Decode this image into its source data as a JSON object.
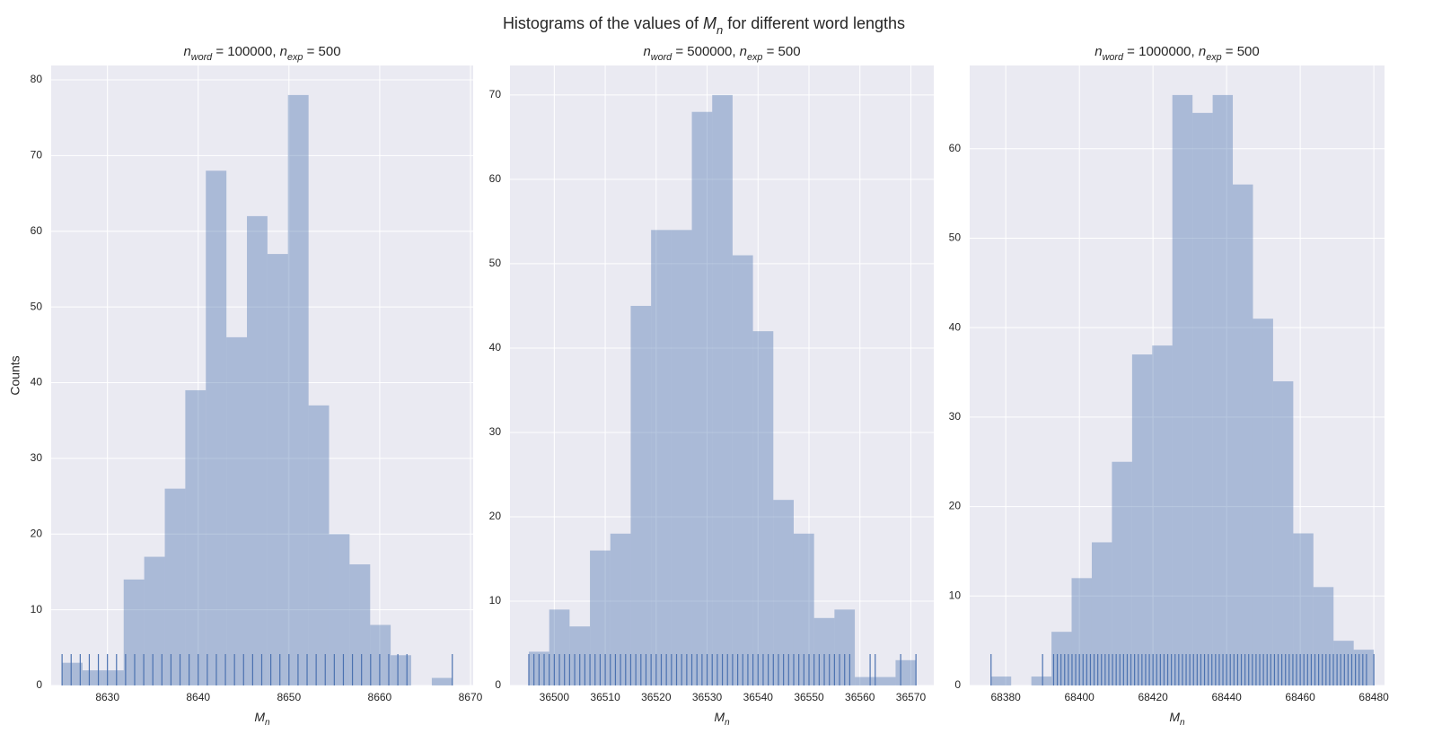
{
  "suptitle": [
    {
      "text": "Histograms of the values of "
    },
    {
      "text": "M",
      "sub": "n"
    },
    {
      "text": " for different word lengths"
    }
  ],
  "chart_data": [
    {
      "type": "histogram",
      "title": [
        {
          "text": "n",
          "sub": "word"
        },
        {
          "text": " = 100000, "
        },
        {
          "text": "n",
          "sub": "exp"
        },
        {
          "text": " = 500"
        }
      ],
      "xlabel": [
        {
          "text": "M",
          "sub": "n"
        }
      ],
      "ylabel": "Counts",
      "bins": [
        8625,
        8627.26,
        8629.53,
        8631.79,
        8634.05,
        8636.32,
        8638.58,
        8640.84,
        8643.11,
        8645.37,
        8647.63,
        8649.89,
        8652.16,
        8654.42,
        8656.68,
        8658.95,
        8661.21,
        8663.47,
        8665.74,
        8668
      ],
      "counts": [
        3,
        2,
        2,
        14,
        17,
        26,
        39,
        68,
        46,
        62,
        57,
        78,
        37,
        20,
        16,
        8,
        4,
        0,
        1
      ],
      "rug": [
        8625,
        8626,
        8627,
        8628,
        8629,
        8630,
        8631,
        8632,
        8633,
        8634,
        8635,
        8636,
        8637,
        8638,
        8639,
        8640,
        8641,
        8642,
        8643,
        8644,
        8645,
        8646,
        8647,
        8648,
        8649,
        8650,
        8651,
        8652,
        8653,
        8654,
        8655,
        8656,
        8657,
        8658,
        8659,
        8660,
        8661,
        8662,
        8663,
        8668
      ],
      "color": "#4c72b0",
      "xlim": [
        8623.8,
        8670.3
      ],
      "ylim": [
        0,
        81.9
      ],
      "xticks": [
        8630,
        8640,
        8650,
        8660,
        8670
      ],
      "yticks": [
        0,
        10,
        20,
        30,
        40,
        50,
        60,
        70,
        80
      ],
      "grid": true
    },
    {
      "type": "histogram",
      "title": [
        {
          "text": "n",
          "sub": "word"
        },
        {
          "text": " = 500000, "
        },
        {
          "text": "n",
          "sub": "exp"
        },
        {
          "text": " = 500"
        }
      ],
      "xlabel": [
        {
          "text": "M",
          "sub": "n"
        }
      ],
      "bins": [
        36495,
        36499,
        36503,
        36507,
        36511,
        36515,
        36519,
        36523,
        36527,
        36531,
        36535,
        36539,
        36543,
        36547,
        36551,
        36555,
        36559,
        36563,
        36567,
        36571
      ],
      "counts": [
        4,
        9,
        7,
        16,
        18,
        45,
        54,
        54,
        68,
        70,
        51,
        42,
        22,
        18,
        8,
        9,
        1,
        1,
        3
      ],
      "rug": [
        36495,
        36496,
        36497,
        36498,
        36499,
        36500,
        36501,
        36502,
        36503,
        36504,
        36505,
        36506,
        36507,
        36508,
        36509,
        36510,
        36511,
        36512,
        36513,
        36514,
        36515,
        36516,
        36517,
        36518,
        36519,
        36520,
        36521,
        36522,
        36523,
        36524,
        36525,
        36526,
        36527,
        36528,
        36529,
        36530,
        36531,
        36532,
        36533,
        36534,
        36535,
        36536,
        36537,
        36538,
        36539,
        36540,
        36541,
        36542,
        36543,
        36544,
        36545,
        36546,
        36547,
        36548,
        36549,
        36550,
        36551,
        36552,
        36553,
        36554,
        36555,
        36556,
        36557,
        36558,
        36562,
        36563,
        36568,
        36571
      ],
      "color": "#4c72b0",
      "xlim": [
        36491.3,
        36574.5
      ],
      "ylim": [
        0,
        73.5
      ],
      "xticks": [
        36500,
        36510,
        36520,
        36530,
        36540,
        36550,
        36560,
        36570
      ],
      "yticks": [
        0,
        10,
        20,
        30,
        40,
        50,
        60,
        70
      ],
      "grid": true
    },
    {
      "type": "histogram",
      "title": [
        {
          "text": "n",
          "sub": "word"
        },
        {
          "text": " = 1000000, "
        },
        {
          "text": "n",
          "sub": "exp"
        },
        {
          "text": " = 500"
        }
      ],
      "xlabel": [
        {
          "text": "M",
          "sub": "n"
        }
      ],
      "bins": [
        68376,
        68381.47,
        68386.95,
        68392.42,
        68397.89,
        68403.37,
        68408.84,
        68414.32,
        68419.79,
        68425.26,
        68430.74,
        68436.21,
        68441.68,
        68447.16,
        68452.63,
        68458.11,
        68463.58,
        68469.05,
        68474.53,
        68480
      ],
      "counts": [
        1,
        0,
        1,
        6,
        12,
        16,
        25,
        37,
        38,
        66,
        64,
        66,
        56,
        41,
        34,
        17,
        11,
        5,
        4
      ],
      "rug": [
        68376,
        68390,
        68393,
        68394,
        68395,
        68396,
        68397,
        68398,
        68399,
        68400,
        68401,
        68402,
        68403,
        68404,
        68405,
        68406,
        68407,
        68408,
        68409,
        68410,
        68411,
        68412,
        68413,
        68414,
        68415,
        68416,
        68417,
        68418,
        68419,
        68420,
        68421,
        68422,
        68423,
        68424,
        68425,
        68426,
        68427,
        68428,
        68429,
        68430,
        68431,
        68432,
        68433,
        68434,
        68435,
        68436,
        68437,
        68438,
        68439,
        68440,
        68441,
        68442,
        68443,
        68444,
        68445,
        68446,
        68447,
        68448,
        68449,
        68450,
        68451,
        68452,
        68453,
        68454,
        68455,
        68456,
        68457,
        68458,
        68459,
        68460,
        68461,
        68462,
        68463,
        68464,
        68465,
        68466,
        68467,
        68468,
        68469,
        68470,
        68471,
        68472,
        68473,
        68474,
        68475,
        68476,
        68477,
        68478,
        68480
      ],
      "color": "#4c72b0",
      "xlim": [
        68370.2,
        68482.9
      ],
      "ylim": [
        0,
        69.3
      ],
      "xticks": [
        68380,
        68400,
        68420,
        68440,
        68460,
        68480
      ],
      "yticks": [
        0,
        10,
        20,
        30,
        40,
        50,
        60
      ],
      "grid": true
    }
  ]
}
